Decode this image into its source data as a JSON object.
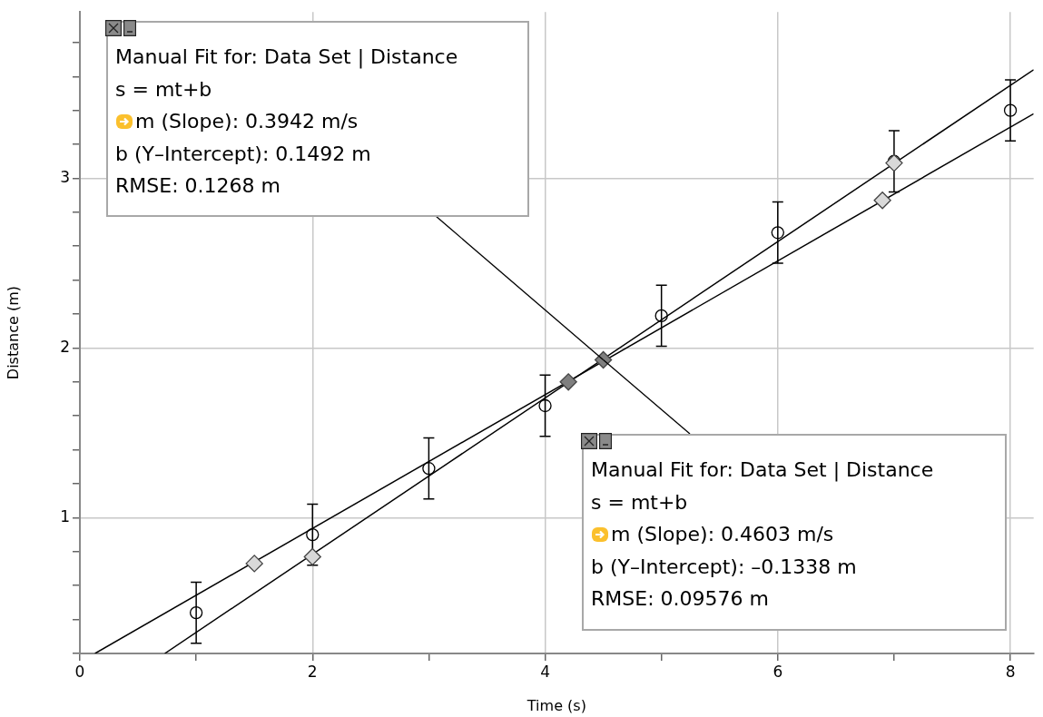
{
  "chart_data": {
    "type": "scatter",
    "xlabel": "Time (s)",
    "ylabel": "Distance (m)",
    "xlim": [
      0,
      8.2
    ],
    "ylim": [
      0.2,
      3.98
    ],
    "xticks": [
      0,
      {
        "value": 1,
        "label": null
      },
      2,
      {
        "value": 3,
        "label": null
      },
      4,
      {
        "value": 5,
        "label": null
      },
      6,
      {
        "value": 7,
        "label": null
      },
      8
    ],
    "yticks": [
      {
        "value": 0.2,
        "label": null
      },
      {
        "value": 0.4,
        "label": null
      },
      {
        "value": 0.6,
        "label": null
      },
      {
        "value": 0.8,
        "label": null
      },
      1,
      {
        "value": 1.2,
        "label": null
      },
      {
        "value": 1.4,
        "label": null
      },
      {
        "value": 1.6,
        "label": null
      },
      {
        "value": 1.8,
        "label": null
      },
      2,
      {
        "value": 2.2,
        "label": null
      },
      {
        "value": 2.4,
        "label": null
      },
      {
        "value": 2.6,
        "label": null
      },
      {
        "value": 2.8,
        "label": null
      },
      3,
      {
        "value": 3.2,
        "label": null
      },
      {
        "value": 3.4,
        "label": null
      },
      {
        "value": 3.6,
        "label": null
      },
      {
        "value": 3.8,
        "label": null
      }
    ],
    "grid": true,
    "legend": false,
    "series": [
      {
        "type": "line",
        "color": "#000000",
        "marker": "none",
        "x": [
          0.13,
          8.2
        ],
        "values": [
          0.2,
          3.38
        ]
      },
      {
        "type": "line",
        "color": "#000000",
        "marker": "none",
        "x": [
          0.73,
          8.2
        ],
        "values": [
          0.2,
          3.64
        ]
      },
      {
        "type": "scatter",
        "color": "#000000",
        "marker": "circle",
        "x": [
          1,
          2,
          3,
          4,
          5,
          6,
          7,
          8
        ],
        "values": [
          0.44,
          0.9,
          1.29,
          1.66,
          2.19,
          2.68,
          3.1,
          3.4
        ],
        "errors": [
          0.18,
          0.18,
          0.18,
          0.18,
          0.18,
          0.18,
          0.18,
          0.18
        ]
      },
      {
        "type": "scatter",
        "color": "#d9d9d9",
        "marker": "diamond",
        "x": [
          1.5,
          2,
          4.2,
          4.5,
          6.9,
          7
        ],
        "values": [
          0.73,
          0.77,
          1.8,
          1.93,
          2.87,
          3.09
        ],
        "colors": [
          "#d9d9d9",
          "#d9d9d9",
          "#7f7f7f",
          "#7f7f7f",
          "#d9d9d9",
          "#d9d9d9"
        ]
      }
    ],
    "annotations": [
      {
        "text": "Manual Fit for: Data Set | Distance\ns = mt+b\nm (Slope): 0.3942 m/s\nb (Y–Intercept): 0.1492 m\nRMSE: 0.1268 m",
        "x": 4.5,
        "y": 1.93
      },
      {
        "text": "Manual Fit for: Data Set | Distance\ns = mt+b\nm (Slope): 0.4603 m/s\nb (Y–Intercept): –0.1338 m\nRMSE: 0.09576 m",
        "x": 4.5,
        "y": 1.93
      }
    ]
  }
}
